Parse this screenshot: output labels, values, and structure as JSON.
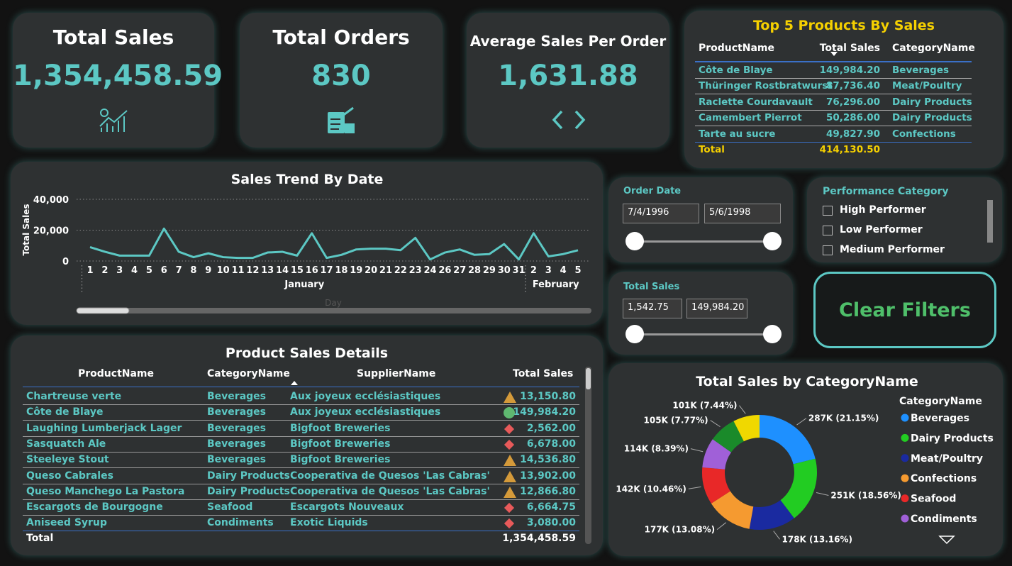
{
  "kpis": [
    {
      "title": "Total Sales",
      "value": "1,354,458.59"
    },
    {
      "title": "Total Orders",
      "value": "830"
    },
    {
      "title": "Average Sales Per Order",
      "value": "1,631.88"
    }
  ],
  "top_products": {
    "title": "Top 5 Products By Sales",
    "columns": [
      "ProductName",
      "Total Sales",
      "CategoryName"
    ],
    "rows": [
      [
        "Côte de Blaye",
        "149,984.20",
        "Beverages"
      ],
      [
        "Thüringer Rostbratwurst",
        "87,736.40",
        "Meat/Poultry"
      ],
      [
        "Raclette Courdavault",
        "76,296.00",
        "Dairy Products"
      ],
      [
        "Camembert Pierrot",
        "50,286.00",
        "Dairy Products"
      ],
      [
        "Tarte au sucre",
        "49,827.90",
        "Confections"
      ]
    ],
    "total": [
      "Total",
      "414,130.50"
    ]
  },
  "order_date": {
    "title": "Order Date",
    "from": "7/4/1996",
    "to": "5/6/1998"
  },
  "total_sales_filter": {
    "title": "Total Sales",
    "from": "1,542.75",
    "to": "149,984.20"
  },
  "performance": {
    "title": "Performance Category",
    "options": [
      "High Performer",
      "Low Performer",
      "Medium Performer"
    ]
  },
  "clear_button": "Clear Filters",
  "product_details": {
    "title": "Product Sales Details",
    "columns": [
      "ProductName",
      "CategoryName",
      "SupplierName",
      "Total Sales"
    ],
    "rows": [
      [
        "Chartreuse verte",
        "Beverages",
        "Aux joyeux ecclésiastiques",
        "13,150.80"
      ],
      [
        "Côte de Blaye",
        "Beverages",
        "Aux joyeux ecclésiastiques",
        "149,984.20"
      ],
      [
        "Laughing Lumberjack Lager",
        "Beverages",
        "Bigfoot Breweries",
        "2,562.00"
      ],
      [
        "Sasquatch Ale",
        "Beverages",
        "Bigfoot Breweries",
        "6,678.00"
      ],
      [
        "Steeleye Stout",
        "Beverages",
        "Bigfoot Breweries",
        "14,536.80"
      ],
      [
        "Queso Cabrales",
        "Dairy Products",
        "Cooperativa de Quesos 'Las Cabras'",
        "13,902.00"
      ],
      [
        "Queso Manchego La Pastora",
        "Dairy Products",
        "Cooperativa de Quesos 'Las Cabras'",
        "12,866.80"
      ],
      [
        "Escargots de Bourgogne",
        "Seafood",
        "Escargots Nouveaux",
        "6,664.75"
      ],
      [
        "Aniseed Syrup",
        "Condiments",
        "Exotic Liquids",
        "3,080.00"
      ]
    ],
    "total": [
      "Total",
      "1,354,458.59"
    ]
  },
  "chart_data": [
    {
      "type": "line",
      "title": "Sales Trend By Date",
      "y_label": "Total Sales",
      "x_label": "Day",
      "color": "#5cc8c4",
      "grid": true,
      "categories": [
        "1",
        "2",
        "3",
        "4",
        "5",
        "6",
        "7",
        "8",
        "9",
        "10",
        "11",
        "12",
        "13",
        "14",
        "15",
        "16",
        "17",
        "18",
        "19",
        "20",
        "21",
        "22",
        "23",
        "24",
        "26",
        "27",
        "28",
        "29",
        "30",
        "31",
        "2",
        "3",
        "4",
        "5"
      ],
      "x_group": [
        "January",
        "January",
        "January",
        "January",
        "January",
        "January",
        "January",
        "January",
        "January",
        "January",
        "January",
        "January",
        "January",
        "January",
        "January",
        "January",
        "January",
        "January",
        "January",
        "January",
        "January",
        "January",
        "January",
        "January",
        "January",
        "January",
        "January",
        "January",
        "January",
        "January",
        "February",
        "February",
        "February",
        "February"
      ],
      "values": [
        9000,
        6000,
        3500,
        3500,
        3500,
        21000,
        6000,
        2500,
        5000,
        2500,
        2000,
        2000,
        5500,
        6000,
        3500,
        18000,
        2000,
        4000,
        7500,
        8000,
        8000,
        7000,
        15000,
        1000,
        5500,
        7500,
        4000,
        4500,
        11000,
        1000,
        18000,
        3000,
        4500,
        7000
      ],
      "ylim": [
        0,
        40000
      ],
      "yticks": [
        0,
        {
          "value": 20000,
          "label": "20,000"
        },
        {
          "value": 40000,
          "label": "40,000"
        }
      ]
    },
    {
      "type": "pie",
      "title": "Total Sales by CategoryName",
      "legend_title": "CategoryName",
      "categories": [
        "Beverages",
        "Dairy Products",
        "Meat/Poultry",
        "Confections",
        "Seafood",
        "Condiments",
        null,
        null
      ],
      "values": [
        287,
        251,
        178,
        177,
        142,
        114,
        105,
        101
      ],
      "value_labels": [
        "287K (21.15%)",
        "251K (18.56%)",
        "178K (13.16%)",
        "177K (13.08%)",
        "142K (10.46%)",
        "114K (8.39%)",
        "105K (7.77%)",
        "101K (7.44%)"
      ],
      "colors": [
        "#1e90ff",
        "#22cc22",
        "#1a2aa0",
        "#f59a30",
        "#e82828",
        "#a060d8",
        "#1a8a2a",
        "#f0d800"
      ]
    }
  ]
}
